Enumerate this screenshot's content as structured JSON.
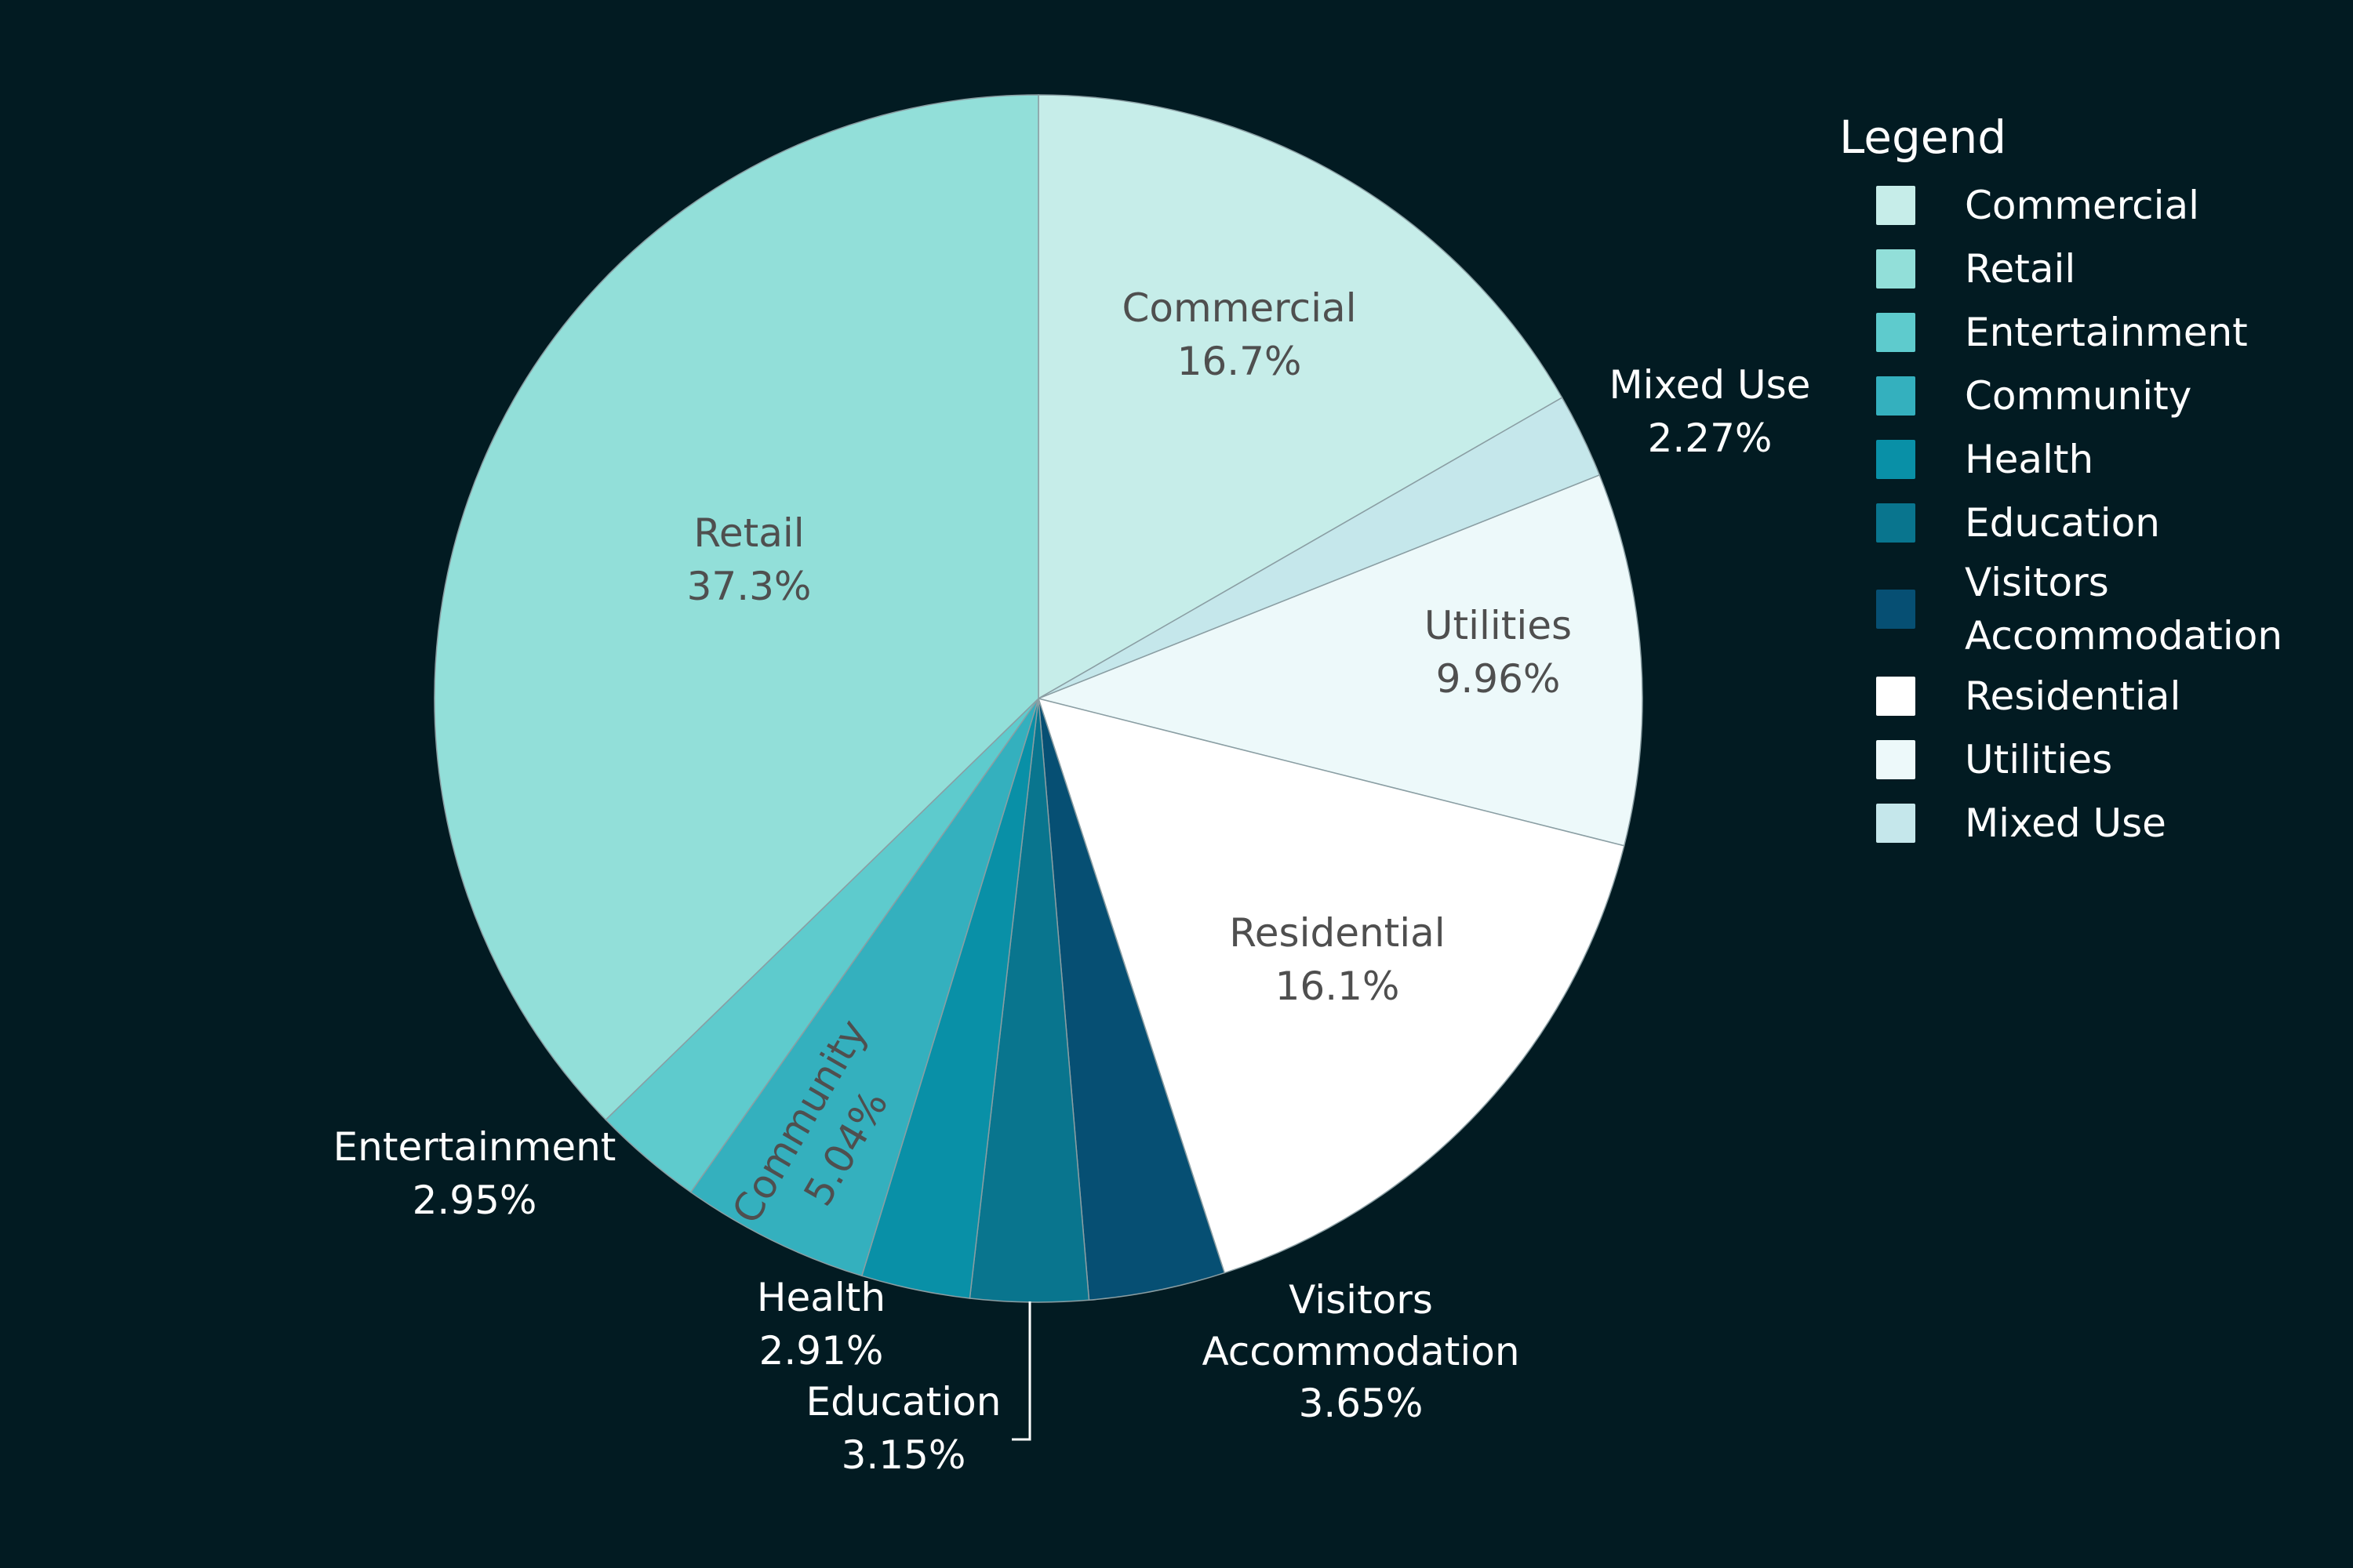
{
  "chart_data": {
    "type": "pie",
    "title": "",
    "legend": {
      "title": "Legend",
      "position": "right"
    },
    "slices": [
      {
        "name": "Commercial",
        "value": 16.7,
        "value_label": "16.7%",
        "display_name": "Commercial",
        "color": "#c6ede9",
        "label_placement": "inside"
      },
      {
        "name": "Retail",
        "value": 37.3,
        "value_label": "37.3%",
        "display_name": "Retail",
        "color": "#92dfd9",
        "label_placement": "inside"
      },
      {
        "name": "Entertainment",
        "value": 2.95,
        "value_label": "2.95%",
        "display_name": "Entertainment",
        "color": "#5ecbcd",
        "label_placement": "outside"
      },
      {
        "name": "Community",
        "value": 5.04,
        "value_label": "5.04%",
        "display_name": "Community",
        "color": "#34b0be",
        "label_placement": "inside-rotated"
      },
      {
        "name": "Health",
        "value": 2.91,
        "value_label": "2.91%",
        "display_name": "Health",
        "color": "#0990a7",
        "label_placement": "outside"
      },
      {
        "name": "Education",
        "value": 3.15,
        "value_label": "3.15%",
        "display_name": "Education",
        "color": "#09758e",
        "label_placement": "outside"
      },
      {
        "name": "Visitors Accommodation",
        "value": 3.65,
        "value_label": "3.65%",
        "display_name": "Visitors\nAccommodation",
        "color": "#064f73",
        "label_placement": "outside"
      },
      {
        "name": "Residential",
        "value": 16.1,
        "value_label": "16.1%",
        "display_name": "Residential",
        "color": "#ffffff",
        "label_placement": "inside"
      },
      {
        "name": "Utilities",
        "value": 9.96,
        "value_label": "9.96%",
        "display_name": "Utilities",
        "color": "#edf9fa",
        "label_placement": "inside"
      },
      {
        "name": "Mixed Use",
        "value": 2.27,
        "value_label": "2.27%",
        "display_name": "Mixed Use",
        "color": "#c5e7eb",
        "label_placement": "outside"
      }
    ]
  }
}
